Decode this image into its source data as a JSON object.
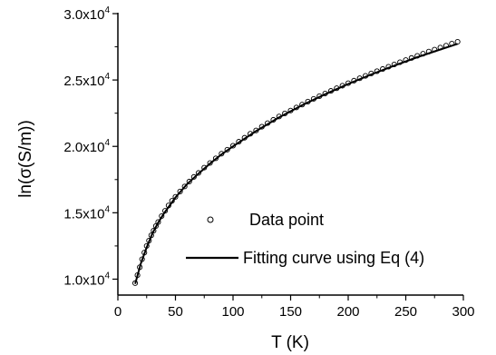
{
  "chart_data": {
    "type": "scatter",
    "xlabel": "T (K)",
    "ylabel": "ln(σ(S/m))",
    "xlim": [
      0,
      300
    ],
    "ylim": [
      8800,
      30000
    ],
    "x_ticks": [
      0,
      50,
      100,
      150,
      200,
      250,
      300
    ],
    "x_tick_labels": [
      "0",
      "50",
      "100",
      "150",
      "200",
      "250",
      "300"
    ],
    "y_ticks": [
      {
        "value": 10000,
        "mantissa": "1.0x10",
        "exponent": "4"
      },
      {
        "value": 15000,
        "mantissa": "1.5x10",
        "exponent": "4"
      },
      {
        "value": 20000,
        "mantissa": "2.0x10",
        "exponent": "4"
      },
      {
        "value": 25000,
        "mantissa": "2.5x10",
        "exponent": "4"
      },
      {
        "value": 30000,
        "mantissa": "3.0x10",
        "exponent": "4"
      }
    ],
    "grid": false,
    "legend_position": "lower-right",
    "series": [
      {
        "name": "Data point",
        "kind": "scatter",
        "marker": "open-circle",
        "color": "#000000",
        "x": [
          15,
          17,
          19,
          21,
          23,
          25,
          27,
          29,
          31,
          33,
          35,
          38,
          41,
          44,
          47,
          50,
          54,
          58,
          62,
          66,
          70,
          75,
          80,
          85,
          90,
          95,
          100,
          105,
          110,
          115,
          120,
          125,
          130,
          135,
          140,
          145,
          150,
          155,
          160,
          165,
          170,
          175,
          180,
          185,
          190,
          195,
          200,
          205,
          210,
          215,
          220,
          225,
          230,
          235,
          240,
          245,
          250,
          255,
          260,
          265,
          270,
          275,
          280,
          285,
          290,
          295
        ],
        "y": [
          9700,
          10300,
          10900,
          11500,
          12000,
          12500,
          12900,
          13300,
          13650,
          14000,
          14300,
          14750,
          15150,
          15550,
          15900,
          16200,
          16600,
          16980,
          17350,
          17700,
          18000,
          18400,
          18750,
          19100,
          19450,
          19750,
          20050,
          20350,
          20650,
          20950,
          21200,
          21480,
          21750,
          22000,
          22250,
          22480,
          22700,
          22930,
          23150,
          23370,
          23580,
          23780,
          23980,
          24180,
          24380,
          24570,
          24760,
          24950,
          25130,
          25310,
          25490,
          25660,
          25830,
          26000,
          26170,
          26340,
          26500,
          26660,
          26820,
          26980,
          27140,
          27290,
          27440,
          27590,
          27740,
          27880
        ]
      },
      {
        "name": "Fitting curve using Eq (4)",
        "kind": "line",
        "color": "#000000",
        "x": [
          15,
          20,
          25,
          30,
          35,
          40,
          50,
          60,
          70,
          80,
          90,
          100,
          120,
          140,
          160,
          180,
          200,
          220,
          240,
          260,
          280,
          295
        ],
        "y": [
          9650,
          11200,
          12400,
          13450,
          14250,
          14950,
          16150,
          17150,
          17950,
          18700,
          19400,
          20000,
          21150,
          22180,
          23100,
          23930,
          24700,
          25420,
          26080,
          26720,
          27300,
          27720
        ]
      }
    ]
  }
}
